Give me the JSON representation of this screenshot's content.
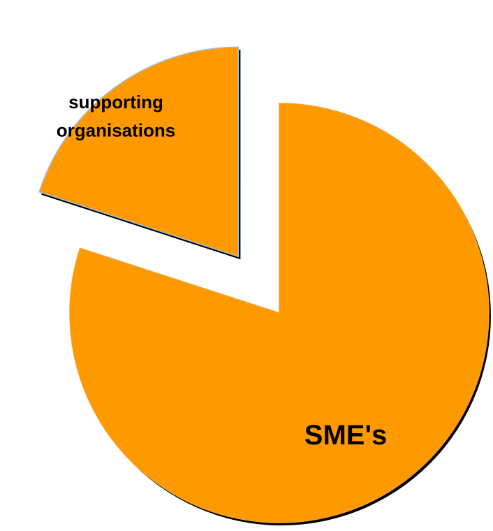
{
  "chart_data": {
    "type": "pie",
    "title": "",
    "slices": [
      {
        "label": "SME's",
        "value": 80,
        "color": "#FF9900",
        "exploded": true
      },
      {
        "label": "supporting organisations",
        "label_lines": [
          "supporting",
          "organisations"
        ],
        "value": 20,
        "color": "#FF9900",
        "exploded": true
      }
    ],
    "legend": "none",
    "style": "3d-shadow"
  }
}
